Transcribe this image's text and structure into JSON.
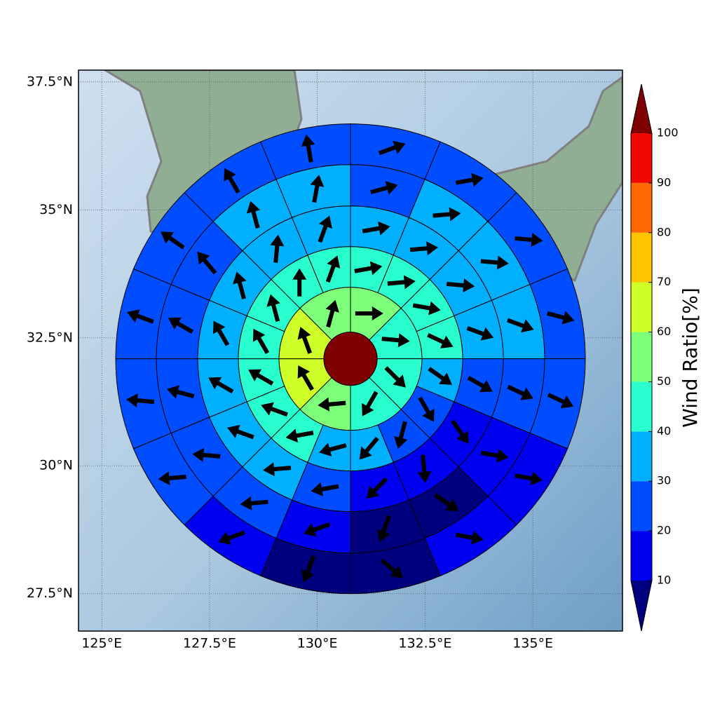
{
  "chart_data": {
    "type": "polar-grid-map",
    "xlim": [
      124.46,
      137.08
    ],
    "ylim": [
      26.77,
      37.73
    ],
    "xticks": [
      {
        "value": 125,
        "label": "125°E"
      },
      {
        "value": 127.5,
        "label": "127.5°E"
      },
      {
        "value": 130,
        "label": "130°E"
      },
      {
        "value": 132.5,
        "label": "132.5°E"
      },
      {
        "value": 135,
        "label": "135°E"
      }
    ],
    "yticks": [
      {
        "value": 27.5,
        "label": "27.5°N"
      },
      {
        "value": 30,
        "label": "30°N"
      },
      {
        "value": 32.5,
        "label": "32.5°N"
      },
      {
        "value": 35,
        "label": "35°N"
      },
      {
        "value": 37.5,
        "label": "37.5°N"
      }
    ],
    "grid": true,
    "center": {
      "lon": 130.77,
      "lat": 32.09,
      "value": 105
    },
    "rings": [
      {
        "values": [
          55,
          45,
          45,
          45,
          55,
          65,
          65,
          55
        ],
        "directions": [
          90,
          95,
          135,
          210,
          265,
          330,
          340,
          15
        ]
      },
      {
        "values": [
          45,
          45,
          45,
          45,
          35,
          25,
          25,
          35,
          35,
          45,
          45,
          45,
          45,
          45,
          45,
          45
        ],
        "directions": [
          80,
          85,
          100,
          115,
          125,
          150,
          195,
          220,
          255,
          260,
          290,
          300,
          330,
          345,
          0,
          20
        ]
      },
      {
        "values": [
          35,
          35,
          35,
          35,
          25,
          15,
          15,
          15,
          25,
          35,
          35,
          35,
          35,
          35,
          35,
          35
        ],
        "directions": [
          80,
          85,
          95,
          110,
          120,
          145,
          175,
          225,
          260,
          265,
          290,
          300,
          330,
          345,
          5,
          20
        ]
      },
      {
        "values": [
          25,
          35,
          35,
          35,
          25,
          15,
          5,
          5,
          15,
          25,
          25,
          25,
          25,
          25,
          35,
          35
        ],
        "directions": [
          75,
          85,
          95,
          110,
          115,
          100,
          125,
          200,
          250,
          265,
          275,
          285,
          300,
          320,
          345,
          10
        ]
      },
      {
        "values": [
          25,
          25,
          25,
          25,
          25,
          15,
          15,
          5,
          5,
          15,
          25,
          25,
          25,
          25,
          25,
          25
        ],
        "directions": [
          70,
          80,
          95,
          105,
          115,
          100,
          100,
          130,
          200,
          250,
          265,
          275,
          290,
          305,
          330,
          350
        ]
      }
    ],
    "colorbar": {
      "label": "Wind Ratio[%]",
      "ticks": [
        10,
        20,
        30,
        40,
        50,
        60,
        70,
        80,
        90,
        100
      ],
      "colors": [
        "#00007f",
        "#0000f1",
        "#004cff",
        "#00b0ff",
        "#29ffce",
        "#7dff7a",
        "#ceff29",
        "#ffc400",
        "#ff6800",
        "#f10800",
        "#7f0000"
      ],
      "extend": "both"
    }
  }
}
